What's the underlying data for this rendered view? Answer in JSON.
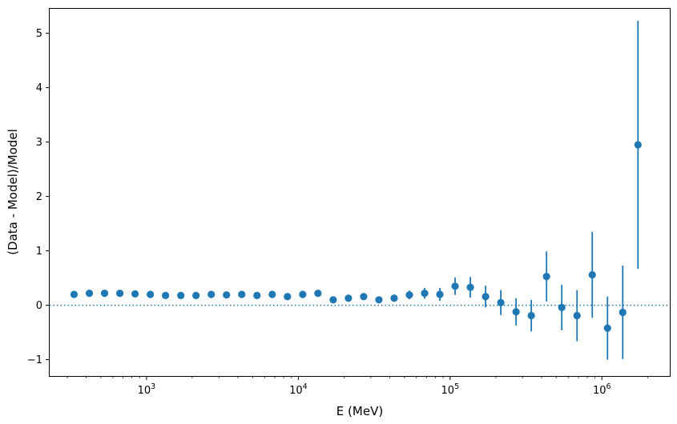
{
  "chart_data": {
    "type": "scatter",
    "title": "",
    "xlabel": "E (MeV)",
    "ylabel": "(Data - Model)/Model",
    "xscale": "log",
    "xlim": [
      230,
      2800000
    ],
    "ylim": [
      -1.3,
      5.45
    ],
    "grid": false,
    "legend": "none",
    "marker_color": "#1f77b4",
    "reference_line": {
      "y": 0,
      "style": "dotted",
      "color": "#1f77b4"
    },
    "x_ticks": [
      {
        "value": 1000,
        "base": "10",
        "exp": "3"
      },
      {
        "value": 10000,
        "base": "10",
        "exp": "4"
      },
      {
        "value": 100000,
        "base": "10",
        "exp": "5"
      },
      {
        "value": 1000000,
        "base": "10",
        "exp": "6"
      }
    ],
    "y_ticks": [
      {
        "value": -1,
        "label": "−1"
      },
      {
        "value": 0,
        "label": "0"
      },
      {
        "value": 1,
        "label": "1"
      },
      {
        "value": 2,
        "label": "2"
      },
      {
        "value": 3,
        "label": "3"
      },
      {
        "value": 4,
        "label": "4"
      },
      {
        "value": 5,
        "label": "5"
      }
    ],
    "points": [
      {
        "x": 333,
        "y": 0.2,
        "err": 0.0
      },
      {
        "x": 420,
        "y": 0.22,
        "err": 0.0
      },
      {
        "x": 529,
        "y": 0.22,
        "err": 0.0
      },
      {
        "x": 667,
        "y": 0.22,
        "err": 0.0
      },
      {
        "x": 840,
        "y": 0.21,
        "err": 0.0
      },
      {
        "x": 1059,
        "y": 0.2,
        "err": 0.0
      },
      {
        "x": 1334,
        "y": 0.18,
        "err": 0.0
      },
      {
        "x": 1681,
        "y": 0.18,
        "err": 0.0
      },
      {
        "x": 2118,
        "y": 0.18,
        "err": 0.0
      },
      {
        "x": 2669,
        "y": 0.2,
        "err": 0.0
      },
      {
        "x": 3363,
        "y": 0.19,
        "err": 0.0
      },
      {
        "x": 4238,
        "y": 0.2,
        "err": 0.0
      },
      {
        "x": 5340,
        "y": 0.18,
        "err": 0.0
      },
      {
        "x": 6729,
        "y": 0.2,
        "err": 0.0
      },
      {
        "x": 8479,
        "y": 0.16,
        "err": 0.0
      },
      {
        "x": 10684,
        "y": 0.2,
        "err": 0.0
      },
      {
        "x": 13463,
        "y": 0.22,
        "err": 0.0
      },
      {
        "x": 16965,
        "y": 0.1,
        "err": 0.0
      },
      {
        "x": 21377,
        "y": 0.13,
        "err": 0.0
      },
      {
        "x": 26937,
        "y": 0.16,
        "err": 0.03
      },
      {
        "x": 33943,
        "y": 0.1,
        "err": 0.03
      },
      {
        "x": 42771,
        "y": 0.13,
        "err": 0.05
      },
      {
        "x": 53896,
        "y": 0.19,
        "err": 0.08
      },
      {
        "x": 67914,
        "y": 0.22,
        "err": 0.1
      },
      {
        "x": 85578,
        "y": 0.2,
        "err": 0.12
      },
      {
        "x": 107837,
        "y": 0.35,
        "err": 0.16
      },
      {
        "x": 135886,
        "y": 0.33,
        "err": 0.19
      },
      {
        "x": 171230,
        "y": 0.16,
        "err": 0.2
      },
      {
        "x": 215766,
        "y": 0.05,
        "err": 0.23
      },
      {
        "x": 271886,
        "y": -0.12,
        "err": 0.25
      },
      {
        "x": 342604,
        "y": -0.19,
        "err": 0.29
      },
      {
        "x": 431716,
        "y": 0.53,
        "err": 0.46
      },
      {
        "x": 544005,
        "y": -0.04,
        "err": 0.42
      },
      {
        "x": 685500,
        "y": -0.19,
        "err": 0.47
      },
      {
        "x": 863797,
        "y": 0.56,
        "err": 0.79
      },
      {
        "x": 1088468,
        "y": -0.42,
        "err": 0.58
      },
      {
        "x": 1371576,
        "y": -0.13,
        "err": 0.86
      },
      {
        "x": 1728324,
        "y": 2.95,
        "err": 2.28
      }
    ]
  }
}
